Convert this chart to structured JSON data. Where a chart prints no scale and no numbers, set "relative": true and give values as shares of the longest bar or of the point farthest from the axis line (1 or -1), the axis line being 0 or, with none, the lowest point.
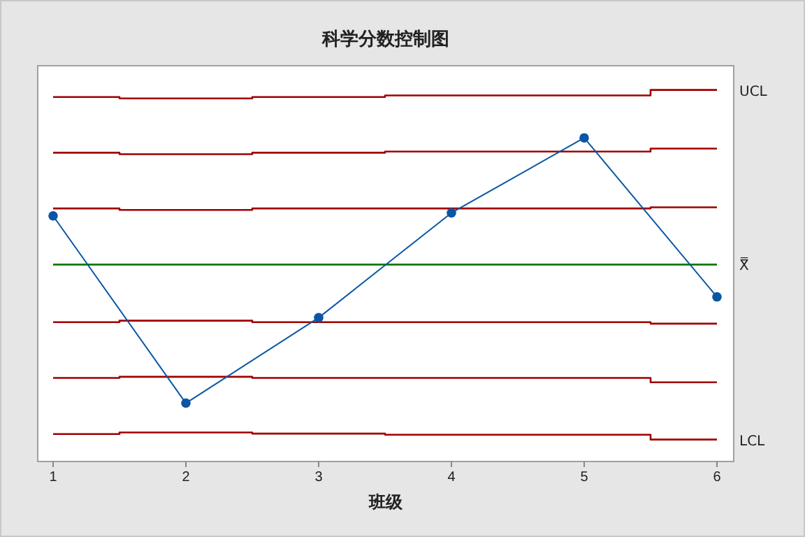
{
  "chart_data": {
    "type": "line",
    "title": "科学分数控制图",
    "xlabel": "班级",
    "relative": true,
    "categories": [
      "1",
      "2",
      "3",
      "4",
      "5",
      "6"
    ],
    "marker": "none",
    "series": [
      {
        "type": "step",
        "name": "UCL",
        "color": "#a00000",
        "values": [
          0.981,
          0.977,
          0.981,
          0.985,
          0.985,
          1
        ]
      },
      {
        "type": "step",
        "color": "#a00000",
        "values": [
          0.831,
          0.827,
          0.831,
          0.834,
          0.834,
          0.842
        ]
      },
      {
        "type": "step",
        "color": "#a00000",
        "values": [
          0.681,
          0.677,
          0.681,
          0.681,
          0.681,
          0.684
        ]
      },
      {
        "type": "step",
        "name": "X̿",
        "color": "#007a00",
        "values": [
          0.53,
          0.53,
          0.53,
          0.53,
          0.53,
          0.53
        ]
      },
      {
        "type": "step",
        "color": "#a00000",
        "values": [
          0.375,
          0.379,
          0.375,
          0.375,
          0.375,
          0.371
        ]
      },
      {
        "type": "step",
        "color": "#a00000",
        "values": [
          0.225,
          0.228,
          0.225,
          0.225,
          0.225,
          0.213
        ]
      },
      {
        "type": "step",
        "name": "LCL",
        "color": "#a00000",
        "values": [
          0.074,
          0.078,
          0.075,
          0.072,
          0.072,
          0.059
        ]
      },
      {
        "marker": "circle",
        "color": "#0a56a5",
        "values": [
          0.661,
          0.157,
          0.387,
          0.669,
          0.871,
          0.443
        ]
      }
    ]
  }
}
